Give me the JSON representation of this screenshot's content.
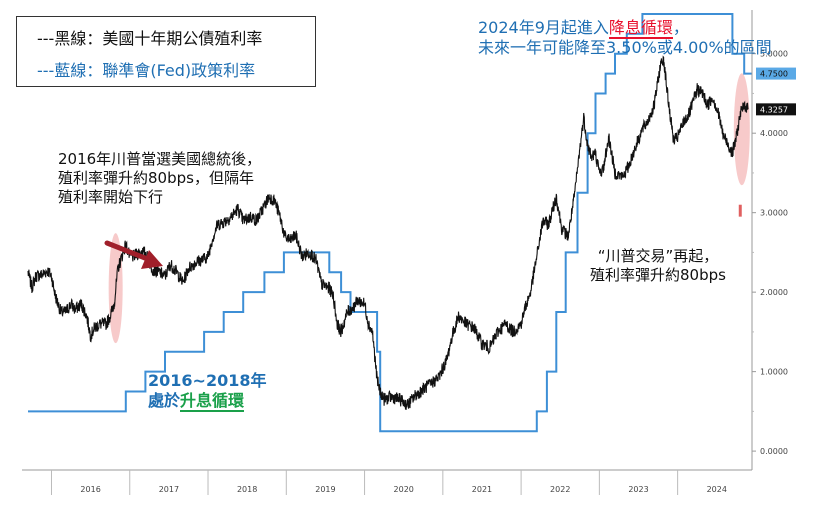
{
  "chart_data": {
    "type": "line",
    "x_range": [
      2015.7,
      2024.95
    ],
    "ylim": [
      -0.2,
      5.55
    ],
    "y_ticks": [
      "0.0000",
      "1.0000",
      "2.0000",
      "3.0000",
      "4.0000",
      "5.0000"
    ],
    "x_ticks": [
      "2016",
      "2017",
      "2018",
      "2019",
      "2020",
      "2021",
      "2022",
      "2023",
      "2024"
    ],
    "last_labels": {
      "fed": "4.7500",
      "yield": "4.3257"
    },
    "colors": {
      "yield": "#111111",
      "fed": "#3d8fd6",
      "axis_box_fed": "#5aa9e6",
      "highlight": "#f4b8b8",
      "arrow": "#a01f2a"
    },
    "series": [
      {
        "key": "yield",
        "points": [
          [
            2015.7,
            2.25
          ],
          [
            2015.75,
            2.06
          ],
          [
            2015.8,
            2.2
          ],
          [
            2015.88,
            2.22
          ],
          [
            2015.95,
            2.27
          ],
          [
            2016.0,
            2.2
          ],
          [
            2016.05,
            1.95
          ],
          [
            2016.12,
            1.75
          ],
          [
            2016.18,
            1.75
          ],
          [
            2016.25,
            1.85
          ],
          [
            2016.3,
            1.78
          ],
          [
            2016.38,
            1.85
          ],
          [
            2016.45,
            1.7
          ],
          [
            2016.5,
            1.45
          ],
          [
            2016.55,
            1.55
          ],
          [
            2016.62,
            1.6
          ],
          [
            2016.7,
            1.6
          ],
          [
            2016.75,
            1.7
          ],
          [
            2016.8,
            1.85
          ],
          [
            2016.85,
            2.3
          ],
          [
            2016.9,
            2.45
          ],
          [
            2016.95,
            2.6
          ],
          [
            2017.0,
            2.45
          ],
          [
            2017.05,
            2.45
          ],
          [
            2017.12,
            2.5
          ],
          [
            2017.2,
            2.5
          ],
          [
            2017.25,
            2.38
          ],
          [
            2017.3,
            2.28
          ],
          [
            2017.38,
            2.25
          ],
          [
            2017.45,
            2.2
          ],
          [
            2017.52,
            2.35
          ],
          [
            2017.6,
            2.25
          ],
          [
            2017.68,
            2.12
          ],
          [
            2017.75,
            2.3
          ],
          [
            2017.85,
            2.38
          ],
          [
            2017.95,
            2.42
          ],
          [
            2018.0,
            2.45
          ],
          [
            2018.05,
            2.65
          ],
          [
            2018.12,
            2.85
          ],
          [
            2018.2,
            2.88
          ],
          [
            2018.3,
            2.95
          ],
          [
            2018.38,
            3.05
          ],
          [
            2018.45,
            2.9
          ],
          [
            2018.55,
            2.95
          ],
          [
            2018.62,
            2.9
          ],
          [
            2018.7,
            3.05
          ],
          [
            2018.78,
            3.2
          ],
          [
            2018.85,
            3.15
          ],
          [
            2018.92,
            2.95
          ],
          [
            2018.98,
            2.7
          ],
          [
            2019.05,
            2.65
          ],
          [
            2019.12,
            2.72
          ],
          [
            2019.2,
            2.45
          ],
          [
            2019.3,
            2.5
          ],
          [
            2019.38,
            2.4
          ],
          [
            2019.45,
            2.1
          ],
          [
            2019.55,
            2.05
          ],
          [
            2019.6,
            1.95
          ],
          [
            2019.65,
            1.6
          ],
          [
            2019.7,
            1.5
          ],
          [
            2019.78,
            1.75
          ],
          [
            2019.85,
            1.8
          ],
          [
            2019.92,
            1.9
          ],
          [
            2020.0,
            1.85
          ],
          [
            2020.05,
            1.6
          ],
          [
            2020.1,
            1.5
          ],
          [
            2020.16,
            0.9
          ],
          [
            2020.2,
            0.75
          ],
          [
            2020.25,
            0.65
          ],
          [
            2020.35,
            0.68
          ],
          [
            2020.45,
            0.65
          ],
          [
            2020.55,
            0.58
          ],
          [
            2020.65,
            0.7
          ],
          [
            2020.75,
            0.78
          ],
          [
            2020.85,
            0.85
          ],
          [
            2020.95,
            0.93
          ],
          [
            2021.05,
            1.15
          ],
          [
            2021.12,
            1.45
          ],
          [
            2021.2,
            1.7
          ],
          [
            2021.3,
            1.6
          ],
          [
            2021.4,
            1.55
          ],
          [
            2021.5,
            1.35
          ],
          [
            2021.6,
            1.3
          ],
          [
            2021.7,
            1.5
          ],
          [
            2021.8,
            1.6
          ],
          [
            2021.9,
            1.5
          ],
          [
            2022.0,
            1.6
          ],
          [
            2022.05,
            1.8
          ],
          [
            2022.12,
            2.0
          ],
          [
            2022.2,
            2.45
          ],
          [
            2022.28,
            2.9
          ],
          [
            2022.35,
            2.85
          ],
          [
            2022.45,
            3.2
          ],
          [
            2022.52,
            2.8
          ],
          [
            2022.6,
            2.7
          ],
          [
            2022.68,
            3.2
          ],
          [
            2022.75,
            3.8
          ],
          [
            2022.8,
            4.2
          ],
          [
            2022.85,
            3.85
          ],
          [
            2022.9,
            3.7
          ],
          [
            2022.95,
            3.75
          ],
          [
            2023.0,
            3.5
          ],
          [
            2023.05,
            3.55
          ],
          [
            2023.12,
            3.95
          ],
          [
            2023.2,
            3.5
          ],
          [
            2023.3,
            3.45
          ],
          [
            2023.38,
            3.6
          ],
          [
            2023.45,
            3.8
          ],
          [
            2023.55,
            4.05
          ],
          [
            2023.62,
            4.15
          ],
          [
            2023.7,
            4.35
          ],
          [
            2023.78,
            4.85
          ],
          [
            2023.82,
            4.95
          ],
          [
            2023.88,
            4.4
          ],
          [
            2023.95,
            3.9
          ],
          [
            2024.0,
            3.95
          ],
          [
            2024.08,
            4.15
          ],
          [
            2024.15,
            4.25
          ],
          [
            2024.25,
            4.55
          ],
          [
            2024.32,
            4.5
          ],
          [
            2024.38,
            4.35
          ],
          [
            2024.45,
            4.45
          ],
          [
            2024.52,
            4.25
          ],
          [
            2024.58,
            3.98
          ],
          [
            2024.65,
            3.85
          ],
          [
            2024.7,
            3.75
          ],
          [
            2024.75,
            3.95
          ],
          [
            2024.8,
            4.25
          ],
          [
            2024.86,
            4.35
          ],
          [
            2024.9,
            4.3
          ]
        ]
      },
      {
        "key": "fed",
        "points": [
          [
            2015.7,
            0.5
          ],
          [
            2016.95,
            0.5
          ],
          [
            2016.95,
            0.75
          ],
          [
            2017.2,
            0.75
          ],
          [
            2017.2,
            1.0
          ],
          [
            2017.45,
            1.0
          ],
          [
            2017.45,
            1.25
          ],
          [
            2017.95,
            1.25
          ],
          [
            2017.95,
            1.5
          ],
          [
            2018.2,
            1.5
          ],
          [
            2018.2,
            1.75
          ],
          [
            2018.45,
            1.75
          ],
          [
            2018.45,
            2.0
          ],
          [
            2018.72,
            2.0
          ],
          [
            2018.72,
            2.25
          ],
          [
            2018.97,
            2.25
          ],
          [
            2018.97,
            2.5
          ],
          [
            2019.55,
            2.5
          ],
          [
            2019.55,
            2.25
          ],
          [
            2019.7,
            2.25
          ],
          [
            2019.7,
            2.0
          ],
          [
            2019.82,
            2.0
          ],
          [
            2019.82,
            1.75
          ],
          [
            2020.16,
            1.75
          ],
          [
            2020.16,
            1.25
          ],
          [
            2020.2,
            1.25
          ],
          [
            2020.2,
            0.25
          ],
          [
            2022.2,
            0.25
          ],
          [
            2022.2,
            0.5
          ],
          [
            2022.33,
            0.5
          ],
          [
            2022.33,
            1.0
          ],
          [
            2022.45,
            1.0
          ],
          [
            2022.45,
            1.75
          ],
          [
            2022.57,
            1.75
          ],
          [
            2022.57,
            2.5
          ],
          [
            2022.72,
            2.5
          ],
          [
            2022.72,
            3.25
          ],
          [
            2022.85,
            3.25
          ],
          [
            2022.85,
            4.0
          ],
          [
            2022.95,
            4.0
          ],
          [
            2022.95,
            4.5
          ],
          [
            2023.08,
            4.5
          ],
          [
            2023.08,
            4.75
          ],
          [
            2023.2,
            4.75
          ],
          [
            2023.2,
            5.0
          ],
          [
            2023.35,
            5.0
          ],
          [
            2023.35,
            5.25
          ],
          [
            2023.55,
            5.25
          ],
          [
            2023.55,
            5.5
          ],
          [
            2024.7,
            5.5
          ],
          [
            2024.7,
            5.0
          ],
          [
            2024.85,
            5.0
          ],
          [
            2024.85,
            4.75
          ],
          [
            2024.95,
            4.75
          ]
        ]
      }
    ]
  },
  "legend": {
    "black_line": "---黑線：美國十年期公債殖利率",
    "blue_line": "---藍線：聯準會(Fed)政策利率"
  },
  "annotations": {
    "top_right_line1_pre": "2024年9月起進入",
    "top_right_line1_red": "降息循環",
    "top_right_line1_post": "，",
    "top_right_line2": "未來一年可能降至3.50%或4.00%的區間",
    "left_line1": "2016年川普當選美國總統後，",
    "left_line2": "殖利率彈升約80bps，但隔年",
    "left_line3": "殖利率開始下行",
    "mid_right_line1": "“川普交易”再起，",
    "mid_right_line2": "殖利率彈升約80bps",
    "cycle_line1": "2016~2018年",
    "cycle_line2_pre": "處於",
    "cycle_line2_green": "升息循環"
  }
}
